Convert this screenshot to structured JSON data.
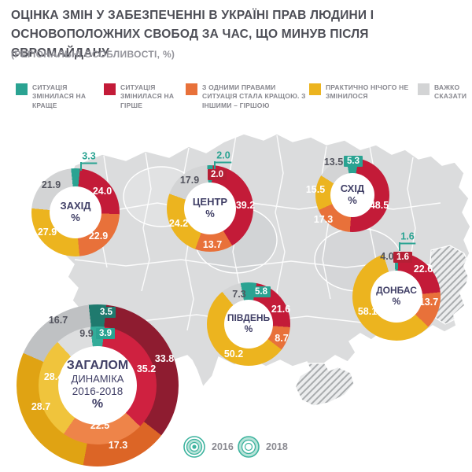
{
  "title": {
    "line1": "ОЦІНКА ЗМІН У ЗАБЕЗПЕЧЕННІ В УКРАЇНІ ПРАВ ЛЮДИНИ І",
    "line2": "ОСНОВОПОЛОЖНИХ СВОБОД ЗА ЧАС, ЩО МИНУВ ПІСЛЯ ЄВРОМАЙДАНУ",
    "subtitle": "(РЕГІОНАЛЬНІ ОСОБЛИВОСТІ, %)"
  },
  "legend": {
    "items": [
      {
        "label": "СИТУАЦІЯ ЗМІНИЛАСЯ НА КРАЩЕ",
        "color": "#2aa392"
      },
      {
        "label": "СИТУАЦІЯ ЗМІНИЛАСЯ НА ГІРШЕ",
        "color": "#c31b38"
      },
      {
        "label": "З ОДНИМИ ПРАВАМИ СИТУАЦІЯ СТАЛА КРАЩОЮ. З ІНШИМИ – ГІРШОЮ",
        "color": "#e8713a"
      },
      {
        "label": "ПРАКТИЧНО НІЧОГО НЕ ЗМІНИЛОСЯ",
        "color": "#ecb41f"
      },
      {
        "label": "ВАЖКО СКАЗАТИ",
        "color": "#d3d4d5"
      }
    ]
  },
  "ring_legend": [
    {
      "label": "2016",
      "ring": "inner"
    },
    {
      "label": "2018",
      "ring": "outer"
    }
  ],
  "colors": {
    "teal": "#2aa392",
    "red": "#c31b38",
    "orange": "#e8713a",
    "yellow": "#ecb41f",
    "gray": "#d3d4d5",
    "teal_dark": "#1f7a6e",
    "red_dark": "#8e1c30",
    "orange_dark": "#dc6526",
    "yellow_dark": "#e0a313",
    "gray_dark": "#bfc1c3",
    "teal_light": "#33ac99",
    "red_light": "#cf2140",
    "orange_light": "#ee8449",
    "yellow_light": "#f0c43c",
    "gray_light": "#dddedf",
    "chip_red": "#b51f35",
    "navy": "#403f66",
    "map_gray": "#dbdcdd"
  },
  "chart_data": {
    "type": "pie",
    "note": "donut charts; shared categories in order teal,red,orange,yellow,gray",
    "categories": [
      "СИТУАЦІЯ ЗМІНИЛАСЯ НА КРАЩЕ",
      "СИТУАЦІЯ ЗМІНИЛАСЯ НА ГІРШЕ",
      "З ОДНИМИ ПРАВАМИ СИТУАЦІЯ СТАЛА КРАЩОЮ. З ІНШИМИ – ГІРШОЮ",
      "ПРАКТИЧНО НІЧОГО НЕ ЗМІНИЛОСЯ",
      "ВАЖКО СКАЗАТИ"
    ],
    "regions": [
      {
        "id": "zahid",
        "name": "ЗАХІД",
        "unit": "%",
        "values": [
          3.3,
          24.0,
          22.9,
          27.9,
          21.9
        ]
      },
      {
        "id": "centr",
        "name": "ЦЕНТР",
        "unit": "%",
        "values": [
          2.0,
          39.2,
          13.7,
          24.2,
          17.9
        ]
      },
      {
        "id": "skhid",
        "name": "СХІД",
        "unit": "%",
        "values": [
          5.3,
          48.5,
          17.3,
          15.5,
          13.5
        ]
      },
      {
        "id": "pivden",
        "name": "ПІВДЕНЬ",
        "unit": "%",
        "values": [
          5.8,
          21.6,
          8.7,
          50.2,
          7.3
        ]
      },
      {
        "id": "donbas",
        "name": "ДОНБАС",
        "unit": "%",
        "values": [
          1.6,
          22.6,
          13.7,
          58.1,
          4.0
        ]
      }
    ],
    "overall": {
      "id": "zagalom",
      "name": "ЗАГАЛОМ",
      "subtitle": "ДИНАМІКА",
      "period": "2016-2018",
      "unit": "%",
      "rings": [
        {
          "year": "2016",
          "position": "inner",
          "values": [
            3.9,
            35.2,
            22.5,
            28.4,
            9.9
          ]
        },
        {
          "year": "2018",
          "position": "outer",
          "values": [
            3.5,
            33.8,
            17.3,
            28.7,
            16.7
          ]
        }
      ]
    }
  }
}
